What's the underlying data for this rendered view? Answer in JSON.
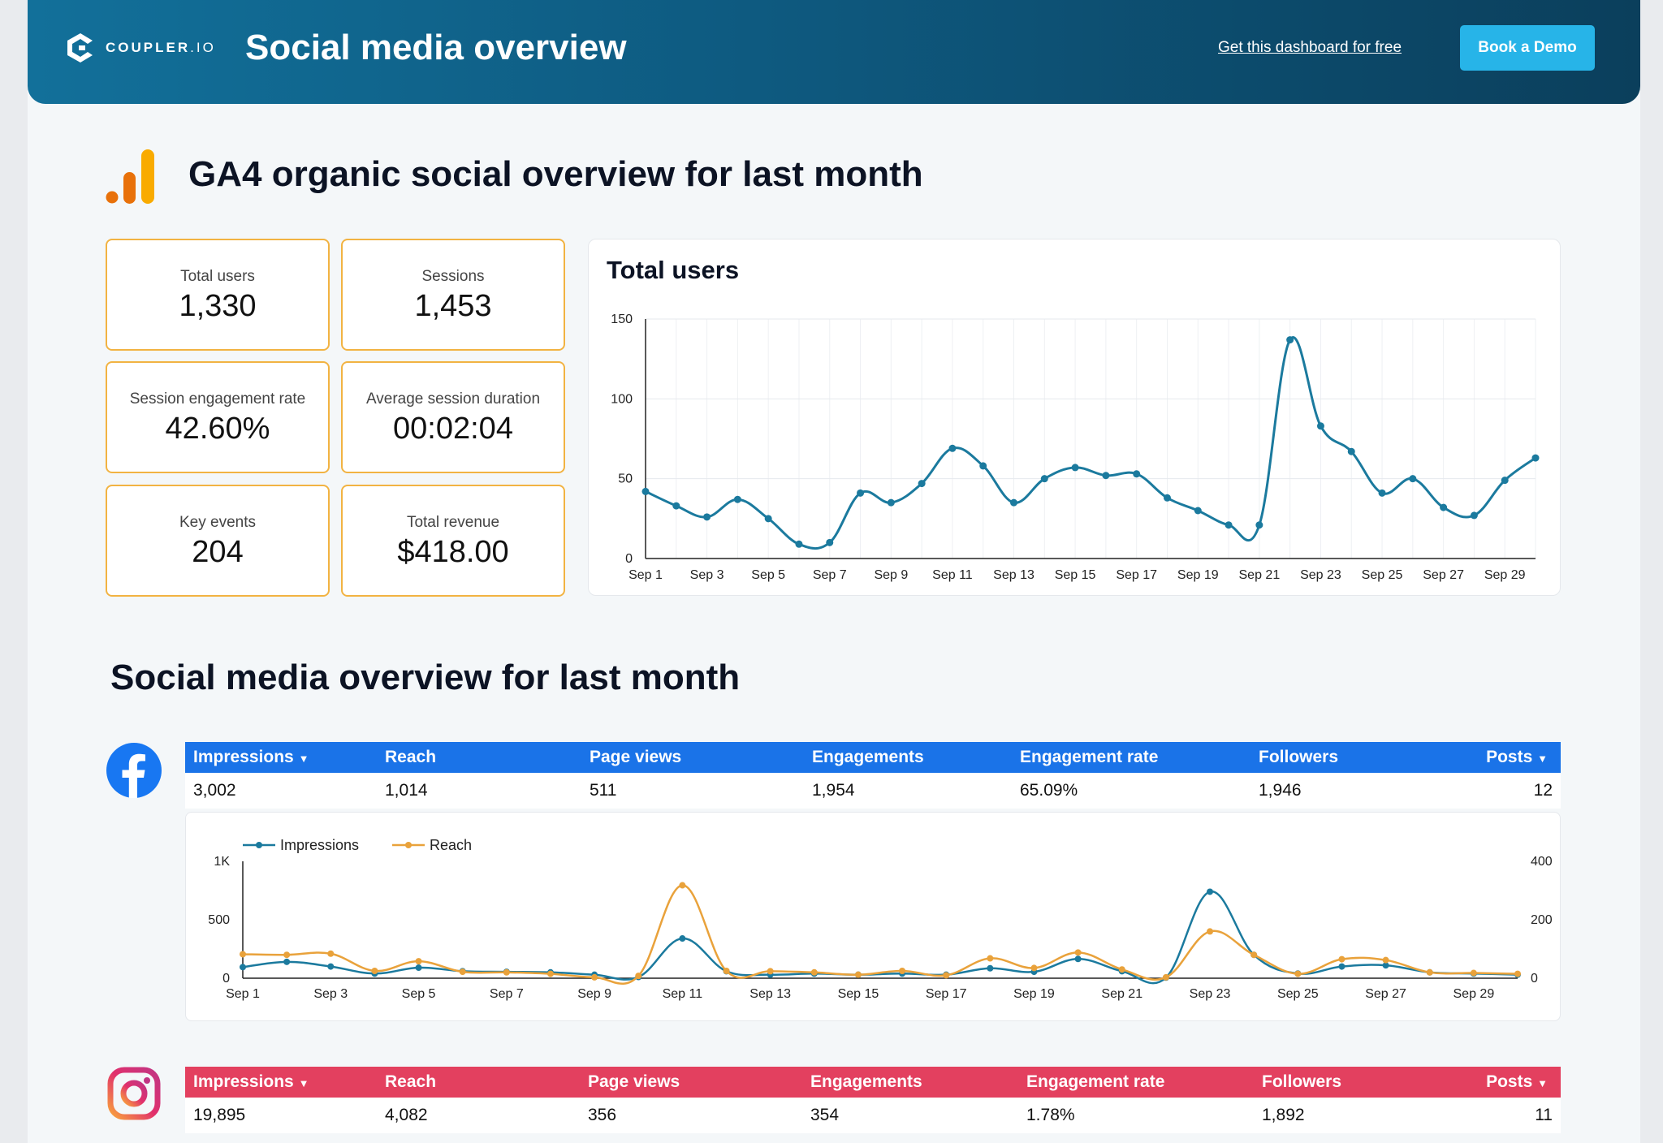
{
  "header": {
    "logo_brand": "COUPLER",
    "logo_suffix": ".IO",
    "title": "Social media overview",
    "get_link": "Get this dashboard for free",
    "demo_button": "Book a Demo"
  },
  "ga4": {
    "title": "GA4 organic social overview for last month",
    "kpis": [
      {
        "label": "Total users",
        "value": "1,330"
      },
      {
        "label": "Sessions",
        "value": "1,453"
      },
      {
        "label": "Session engagement rate",
        "value": "42.60%"
      },
      {
        "label": "Average session duration",
        "value": "00:02:04"
      },
      {
        "label": "Key events",
        "value": "204"
      },
      {
        "label": "Total revenue",
        "value": "$418.00"
      }
    ]
  },
  "social": {
    "title": "Social media overview for last month",
    "columns": [
      "Impressions",
      "Reach",
      "Page views",
      "Engagements",
      "Engagement rate",
      "Followers",
      "Posts"
    ],
    "facebook": {
      "icon": "facebook-icon",
      "color": "#1a73e8",
      "values": [
        "3,002",
        "1,014",
        "511",
        "1,954",
        "65.09%",
        "1,946",
        "12"
      ]
    },
    "instagram": {
      "icon": "instagram-icon",
      "color": "#e3405f",
      "values": [
        "19,895",
        "4,082",
        "356",
        "354",
        "1.78%",
        "1,892",
        "11"
      ]
    }
  },
  "chart_data": [
    {
      "type": "line",
      "title": "Total users",
      "xlabel": "",
      "ylabel": "",
      "ylim": [
        0,
        150
      ],
      "yticks": [
        0,
        50,
        100,
        150
      ],
      "grid": true,
      "color": "#1b7a9e",
      "x": [
        "Sep 1",
        "Sep 2",
        "Sep 3",
        "Sep 4",
        "Sep 5",
        "Sep 6",
        "Sep 7",
        "Sep 8",
        "Sep 9",
        "Sep 10",
        "Sep 11",
        "Sep 12",
        "Sep 13",
        "Sep 14",
        "Sep 15",
        "Sep 16",
        "Sep 17",
        "Sep 18",
        "Sep 19",
        "Sep 20",
        "Sep 21",
        "Sep 22",
        "Sep 23",
        "Sep 24",
        "Sep 25",
        "Sep 26",
        "Sep 27",
        "Sep 28",
        "Sep 29",
        "Sep 30"
      ],
      "xtick_labels": [
        "Sep 1",
        "Sep 3",
        "Sep 5",
        "Sep 7",
        "Sep 9",
        "Sep 11",
        "Sep 13",
        "Sep 15",
        "Sep 17",
        "Sep 19",
        "Sep 21",
        "Sep 23",
        "Sep 25",
        "Sep 27",
        "Sep 29"
      ],
      "values": [
        42,
        33,
        26,
        37,
        25,
        9,
        10,
        41,
        35,
        47,
        69,
        58,
        35,
        50,
        57,
        52,
        53,
        38,
        30,
        21,
        21,
        137,
        83,
        67,
        41,
        50,
        32,
        27,
        49,
        63
      ]
    },
    {
      "type": "line",
      "title": "",
      "legend": "top-left",
      "ylim_left": [
        0,
        1000
      ],
      "ylim_right": [
        0,
        400
      ],
      "yticks_left": [
        "0",
        "500",
        "1K"
      ],
      "yticks_right": [
        "0",
        "200",
        "400"
      ],
      "grid": false,
      "x": [
        "Sep 1",
        "Sep 2",
        "Sep 3",
        "Sep 4",
        "Sep 5",
        "Sep 6",
        "Sep 7",
        "Sep 8",
        "Sep 9",
        "Sep 10",
        "Sep 11",
        "Sep 12",
        "Sep 13",
        "Sep 14",
        "Sep 15",
        "Sep 16",
        "Sep 17",
        "Sep 18",
        "Sep 19",
        "Sep 20",
        "Sep 21",
        "Sep 22",
        "Sep 23",
        "Sep 24",
        "Sep 25",
        "Sep 26",
        "Sep 27",
        "Sep 28",
        "Sep 29",
        "Sep 30"
      ],
      "xtick_labels": [
        "Sep 1",
        "Sep 3",
        "Sep 5",
        "Sep 7",
        "Sep 9",
        "Sep 11",
        "Sep 13",
        "Sep 15",
        "Sep 17",
        "Sep 19",
        "Sep 21",
        "Sep 23",
        "Sep 25",
        "Sep 27",
        "Sep 29"
      ],
      "series": [
        {
          "name": "Impressions",
          "axis": "left",
          "color": "#1b7a9e",
          "values": [
            95,
            140,
            100,
            40,
            90,
            60,
            55,
            50,
            30,
            10,
            340,
            60,
            30,
            40,
            30,
            40,
            30,
            85,
            55,
            165,
            60,
            5,
            740,
            200,
            40,
            100,
            110,
            50,
            40,
            30
          ]
        },
        {
          "name": "Reach",
          "axis": "right",
          "color": "#e9a23b",
          "values": [
            82,
            80,
            84,
            25,
            58,
            22,
            20,
            15,
            3,
            8,
            318,
            25,
            24,
            20,
            12,
            25,
            10,
            68,
            35,
            88,
            30,
            3,
            160,
            80,
            15,
            65,
            62,
            20,
            18,
            15
          ]
        }
      ]
    }
  ]
}
